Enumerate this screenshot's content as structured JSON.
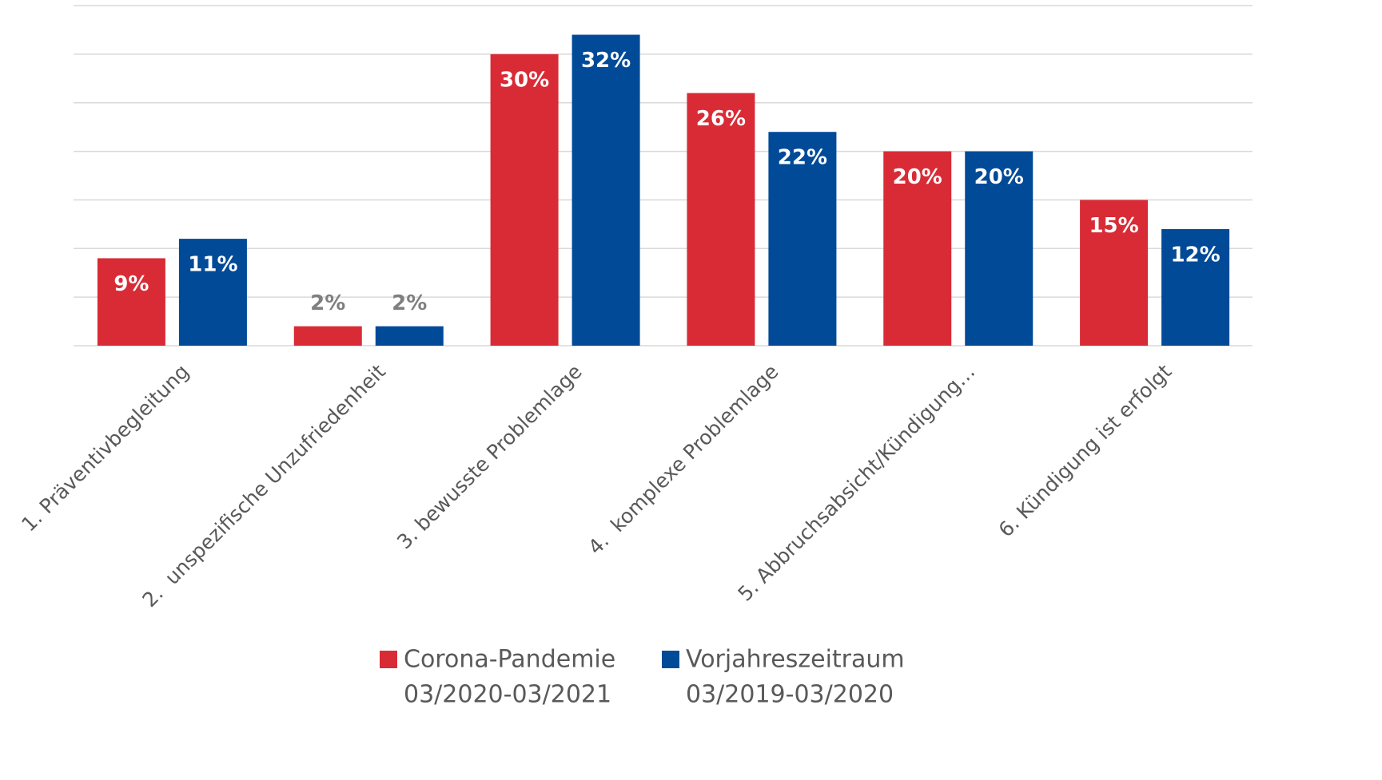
{
  "chart_data": {
    "type": "bar",
    "categories": [
      "1. Präventivbegleitung",
      "2.  unspezifische Unzufriedenheit",
      "3. bewusste Problemlage",
      "4.  komplexe Problemlage",
      "5. Abbruchsabsicht/Kündigung…",
      "6. Kündigung ist erfolgt"
    ],
    "series": [
      {
        "name": [
          "Corona-Pandemie",
          "03/2020-03/2021"
        ],
        "color": "#d92b36",
        "values": [
          9,
          2,
          30,
          26,
          20,
          15
        ],
        "value_labels": [
          "9%",
          "2%",
          "30%",
          "26%",
          "20%",
          "15%"
        ]
      },
      {
        "name": [
          "Vorjahreszeitraum",
          "03/2019-03/2020"
        ],
        "color": "#004a98",
        "values": [
          11,
          2,
          32,
          22,
          20,
          12
        ],
        "value_labels": [
          "11%",
          "2%",
          "32%",
          "22%",
          "20%",
          "12%"
        ]
      }
    ],
    "ylim": [
      0,
      35
    ],
    "yticks": [
      0,
      5,
      10,
      15,
      20,
      25,
      30,
      35
    ],
    "grid": true,
    "legend": "bottom"
  }
}
